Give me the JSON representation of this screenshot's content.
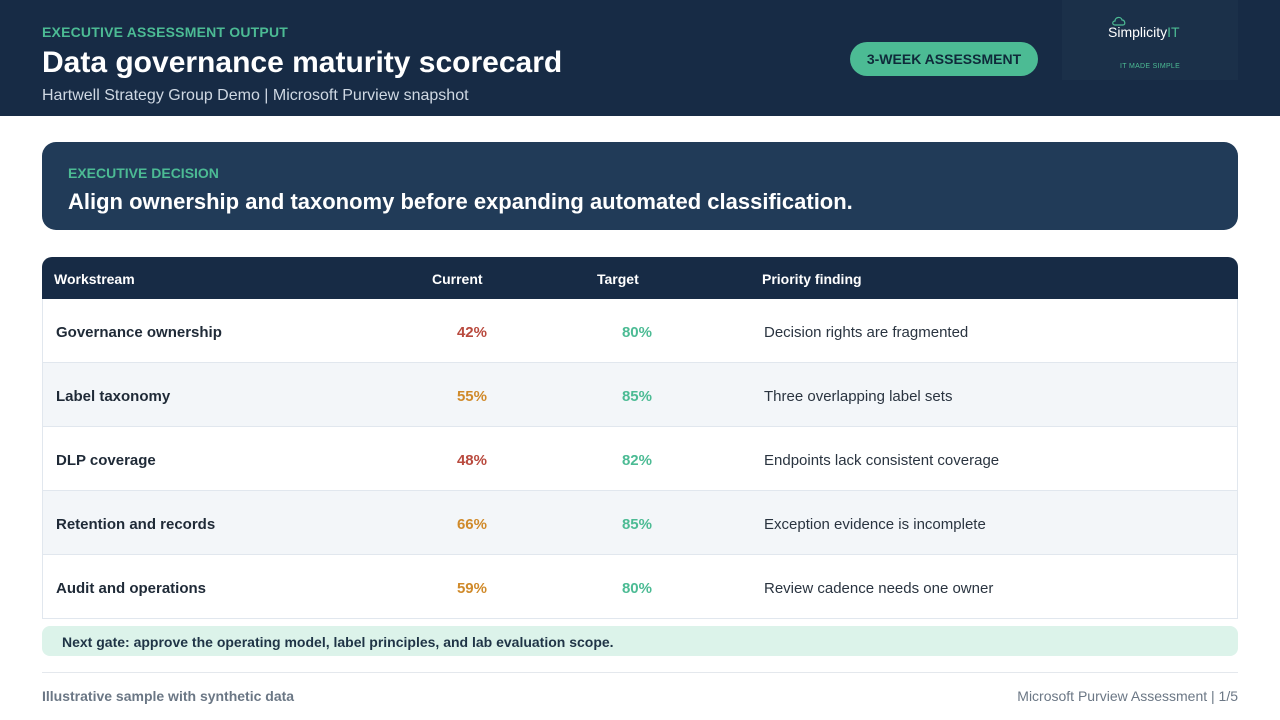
{
  "header": {
    "eyebrow": "EXECUTIVE ASSESSMENT OUTPUT",
    "title": "Data governance maturity scorecard",
    "subtitle": "Hartwell Strategy Group Demo | Microsoft Purview snapshot",
    "badge": "3-WEEK ASSESSMENT",
    "logo": {
      "name_main": "Simplicity",
      "name_accent": "IT",
      "tagline": "IT MADE SIMPLE",
      "icon": "cloud-icon"
    }
  },
  "decision": {
    "eyebrow": "EXECUTIVE DECISION",
    "text": "Align ownership and taxonomy before expanding automated classification."
  },
  "table": {
    "headers": [
      "Workstream",
      "Current",
      "Target",
      "Priority finding"
    ],
    "rows": [
      {
        "workstream": "Governance ownership",
        "current": "42%",
        "target": "80%",
        "finding": "Decision rights are fragmented"
      },
      {
        "workstream": "Label taxonomy",
        "current": "55%",
        "target": "85%",
        "finding": "Three overlapping label sets"
      },
      {
        "workstream": "DLP coverage",
        "current": "48%",
        "target": "82%",
        "finding": "Endpoints lack consistent coverage"
      },
      {
        "workstream": "Retention and records",
        "current": "66%",
        "target": "85%",
        "finding": "Exception evidence is incomplete"
      },
      {
        "workstream": "Audit and operations",
        "current": "59%",
        "target": "80%",
        "finding": "Review cadence needs one owner"
      }
    ]
  },
  "gate": "Next gate: approve the operating model, label principles, and lab evaluation scope.",
  "footer": {
    "left": "Illustrative sample with synthetic data",
    "right": "Microsoft Purview Assessment | 1/5"
  },
  "colors": {
    "navy": "#172b45",
    "accent": "#4cbb94",
    "low": "#b94a3e",
    "mid": "#d08a2a"
  }
}
